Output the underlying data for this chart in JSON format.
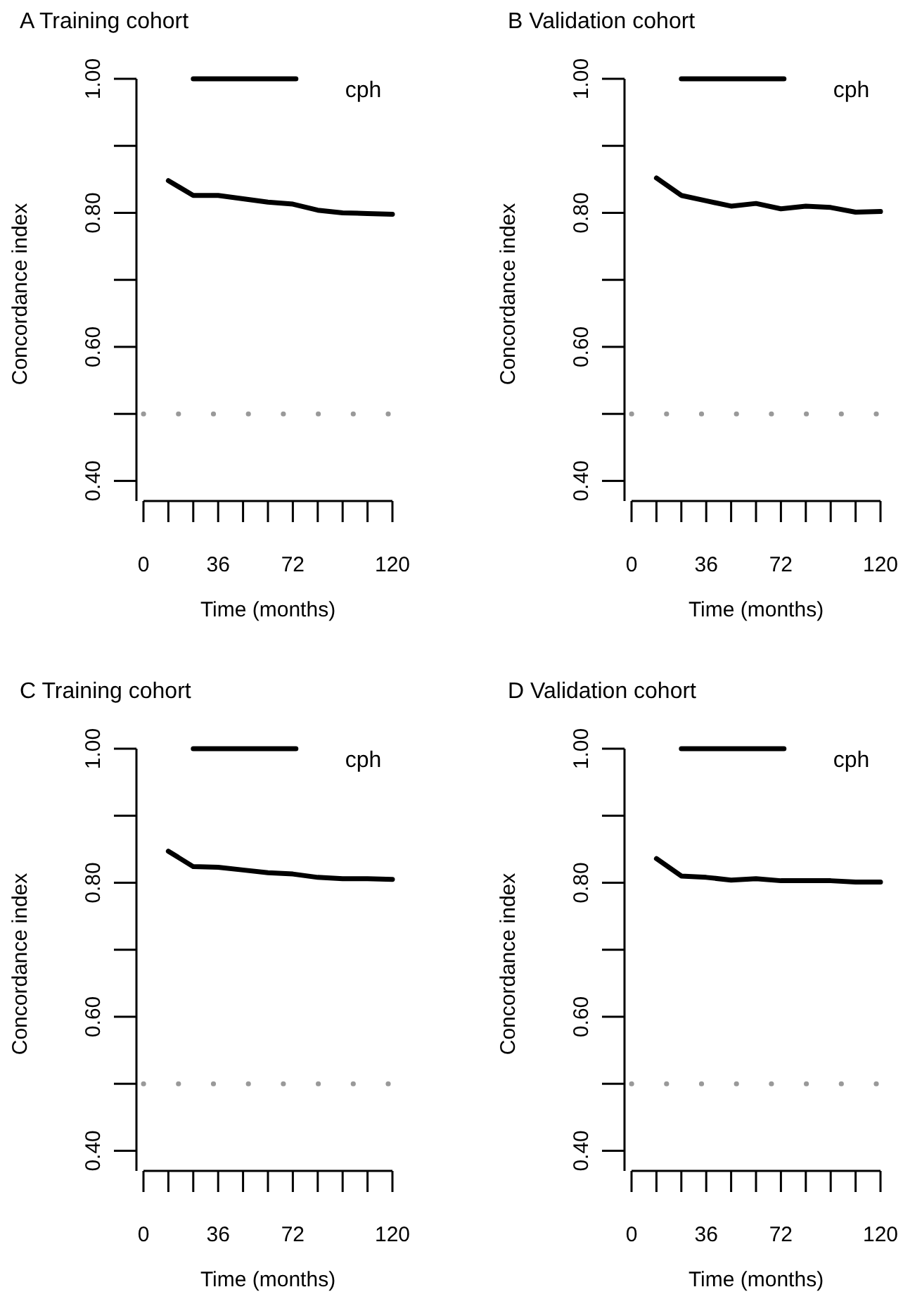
{
  "chart_data": [
    {
      "type": "line",
      "title": "A  Training cohort",
      "xlabel": "Time (months)",
      "ylabel": "Concordance index",
      "x": [
        12,
        24,
        36,
        48,
        60,
        72,
        84,
        96,
        108,
        120
      ],
      "series": [
        {
          "name": "cph",
          "color": "#000000",
          "values": [
            0.848,
            0.826,
            0.826,
            0.821,
            0.816,
            0.813,
            0.804,
            0.8,
            0.799,
            0.798
          ]
        }
      ],
      "xlim": [
        0,
        120
      ],
      "ylim": [
        0.37,
        1.0
      ],
      "xticks": [
        0,
        {
          "value": 12,
          "label": null
        },
        {
          "value": 24,
          "label": null
        },
        36,
        {
          "value": 48,
          "label": null
        },
        {
          "value": 60,
          "label": null
        },
        72,
        {
          "value": 84,
          "label": null
        },
        {
          "value": 96,
          "label": null
        },
        {
          "value": 108,
          "label": null
        },
        120
      ],
      "yticks": [
        {
          "value": 0.4,
          "label": "0.40"
        },
        {
          "value": 0.5,
          "label": null
        },
        {
          "value": 0.6,
          "label": "0.60"
        },
        {
          "value": 0.7,
          "label": null
        },
        {
          "value": 0.8,
          "label": "0.80"
        },
        {
          "value": 0.9,
          "label": null
        },
        {
          "value": 1.0,
          "label": "1.00"
        }
      ],
      "ref_lines": [
        {
          "axis": "y",
          "value": 0.5,
          "color": "#999999",
          "line_style": "dotted"
        }
      ],
      "legend": "top",
      "grid": false,
      "marker": "none",
      "line_style": "solid"
    },
    {
      "type": "line",
      "title": "B  Validation cohort",
      "xlabel": "Time (months)",
      "ylabel": "Concordance index",
      "x": [
        12,
        24,
        36,
        48,
        60,
        72,
        84,
        96,
        108,
        120
      ],
      "series": [
        {
          "name": "cph",
          "color": "#000000",
          "values": [
            0.852,
            0.826,
            0.818,
            0.81,
            0.814,
            0.806,
            0.81,
            0.808,
            0.801,
            0.802
          ]
        }
      ],
      "xlim": [
        0,
        120
      ],
      "ylim": [
        0.37,
        1.0
      ],
      "xticks": [
        0,
        {
          "value": 12,
          "label": null
        },
        {
          "value": 24,
          "label": null
        },
        36,
        {
          "value": 48,
          "label": null
        },
        {
          "value": 60,
          "label": null
        },
        72,
        {
          "value": 84,
          "label": null
        },
        {
          "value": 96,
          "label": null
        },
        {
          "value": 108,
          "label": null
        },
        120
      ],
      "yticks": [
        {
          "value": 0.4,
          "label": "0.40"
        },
        {
          "value": 0.5,
          "label": null
        },
        {
          "value": 0.6,
          "label": "0.60"
        },
        {
          "value": 0.7,
          "label": null
        },
        {
          "value": 0.8,
          "label": "0.80"
        },
        {
          "value": 0.9,
          "label": null
        },
        {
          "value": 1.0,
          "label": "1.00"
        }
      ],
      "ref_lines": [
        {
          "axis": "y",
          "value": 0.5,
          "color": "#999999",
          "line_style": "dotted"
        }
      ],
      "legend": "top",
      "grid": false,
      "marker": "none",
      "line_style": "solid"
    },
    {
      "type": "line",
      "title": "C  Training cohort",
      "xlabel": "Time (months)",
      "ylabel": "Concordance index",
      "x": [
        12,
        24,
        36,
        48,
        60,
        72,
        84,
        96,
        108,
        120
      ],
      "series": [
        {
          "name": "cph",
          "color": "#000000",
          "values": [
            0.847,
            0.824,
            0.823,
            0.819,
            0.815,
            0.813,
            0.808,
            0.806,
            0.806,
            0.805
          ]
        }
      ],
      "xlim": [
        0,
        120
      ],
      "ylim": [
        0.37,
        1.0
      ],
      "xticks": [
        0,
        {
          "value": 12,
          "label": null
        },
        {
          "value": 24,
          "label": null
        },
        36,
        {
          "value": 48,
          "label": null
        },
        {
          "value": 60,
          "label": null
        },
        72,
        {
          "value": 84,
          "label": null
        },
        {
          "value": 96,
          "label": null
        },
        {
          "value": 108,
          "label": null
        },
        120
      ],
      "yticks": [
        {
          "value": 0.4,
          "label": "0.40"
        },
        {
          "value": 0.5,
          "label": null
        },
        {
          "value": 0.6,
          "label": "0.60"
        },
        {
          "value": 0.7,
          "label": null
        },
        {
          "value": 0.8,
          "label": "0.80"
        },
        {
          "value": 0.9,
          "label": null
        },
        {
          "value": 1.0,
          "label": "1.00"
        }
      ],
      "ref_lines": [
        {
          "axis": "y",
          "value": 0.5,
          "color": "#999999",
          "line_style": "dotted"
        }
      ],
      "legend": "top",
      "grid": false,
      "marker": "none",
      "line_style": "solid"
    },
    {
      "type": "line",
      "title": "D  Validation cohort",
      "xlabel": "Time (months)",
      "ylabel": "Concordance index",
      "x": [
        12,
        24,
        36,
        48,
        60,
        72,
        84,
        96,
        108,
        120
      ],
      "series": [
        {
          "name": "cph",
          "color": "#000000",
          "values": [
            0.836,
            0.81,
            0.808,
            0.804,
            0.806,
            0.803,
            0.803,
            0.803,
            0.801,
            0.801
          ]
        }
      ],
      "xlim": [
        0,
        120
      ],
      "ylim": [
        0.37,
        1.0
      ],
      "xticks": [
        0,
        {
          "value": 12,
          "label": null
        },
        {
          "value": 24,
          "label": null
        },
        36,
        {
          "value": 48,
          "label": null
        },
        {
          "value": 60,
          "label": null
        },
        72,
        {
          "value": 84,
          "label": null
        },
        {
          "value": 96,
          "label": null
        },
        {
          "value": 108,
          "label": null
        },
        120
      ],
      "yticks": [
        {
          "value": 0.4,
          "label": "0.40"
        },
        {
          "value": 0.5,
          "label": null
        },
        {
          "value": 0.6,
          "label": "0.60"
        },
        {
          "value": 0.7,
          "label": null
        },
        {
          "value": 0.8,
          "label": "0.80"
        },
        {
          "value": 0.9,
          "label": null
        },
        {
          "value": 1.0,
          "label": "1.00"
        }
      ],
      "ref_lines": [
        {
          "axis": "y",
          "value": 0.5,
          "color": "#999999",
          "line_style": "dotted"
        }
      ],
      "legend": "top",
      "grid": false,
      "marker": "none",
      "line_style": "solid"
    }
  ]
}
